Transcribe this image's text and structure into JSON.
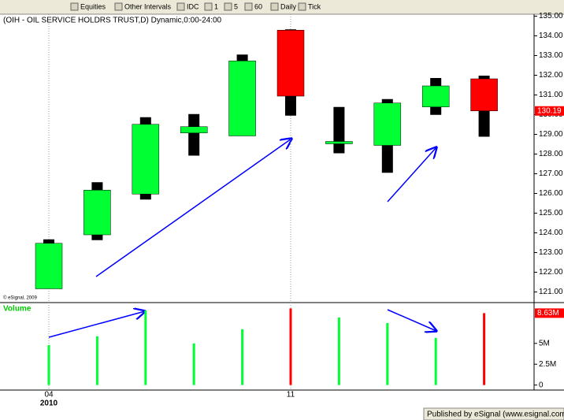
{
  "toolbar": {
    "items": [
      "Equities",
      "Other Intervals",
      "IDC",
      "1",
      "5",
      "60",
      "Daily",
      "Tick"
    ]
  },
  "chart_data": {
    "type": "candlestick",
    "title": "(OIH - OIL SERVICE HOLDRS TRUST,D) Dynamic,0:00-24:00",
    "copyright": "© eSignal, 2009",
    "categories": [
      "04",
      null,
      null,
      null,
      null,
      "11",
      null,
      null,
      null,
      null
    ],
    "year_label": "2010",
    "open": [
      121.16,
      123.9,
      125.97,
      129.07,
      128.92,
      134.29,
      128.52,
      128.44,
      130.39,
      131.82
    ],
    "high": [
      123.67,
      126.57,
      129.87,
      130.03,
      133.05,
      134.33,
      130.39,
      130.79,
      131.86,
      131.98
    ],
    "low": [
      121.16,
      123.63,
      125.69,
      127.92,
      128.92,
      129.95,
      128.04,
      127.05,
      129.99,
      128.88
    ],
    "close": [
      123.47,
      126.17,
      129.51,
      129.39,
      132.73,
      130.94,
      128.64,
      130.59,
      131.46,
      130.19
    ],
    "up_color": "#00ff33",
    "down_color": "#ff0000",
    "wick_color": "#000000",
    "last_label": "130.19",
    "ylim": [
      120.5,
      135.1
    ],
    "yticks": [
      {
        "value": 121,
        "label": "121.00"
      },
      {
        "value": 122,
        "label": "122.00"
      },
      {
        "value": 123,
        "label": "123.00"
      },
      {
        "value": 124,
        "label": "124.00"
      },
      {
        "value": 125,
        "label": "125.00"
      },
      {
        "value": 126,
        "label": "126.00"
      },
      {
        "value": 127,
        "label": "127.00"
      },
      {
        "value": 128,
        "label": "128.00"
      },
      {
        "value": 129,
        "label": "129.00"
      },
      {
        "value": 130,
        "label": "130.00"
      },
      {
        "value": 131,
        "label": "131.00"
      },
      {
        "value": 132,
        "label": "132.00"
      },
      {
        "value": 133,
        "label": "133.00"
      },
      {
        "value": 134,
        "label": "134.00"
      },
      {
        "value": 135,
        "label": "135.00"
      }
    ],
    "volume": {
      "label": "Volume",
      "values": [
        4.8,
        5.85,
        8.96,
        5.0,
        6.7,
        9.2,
        8.1,
        7.45,
        5.65,
        8.63
      ],
      "last_label": "8.63M",
      "ylim": [
        -0.6,
        9.8
      ],
      "yticks": [
        0,
        {
          "value": 2.5,
          "label": "2.5M"
        },
        {
          "value": 5,
          "label": "5M"
        }
      ]
    }
  },
  "footer": "Published by eSignal (www.esignal.com)"
}
